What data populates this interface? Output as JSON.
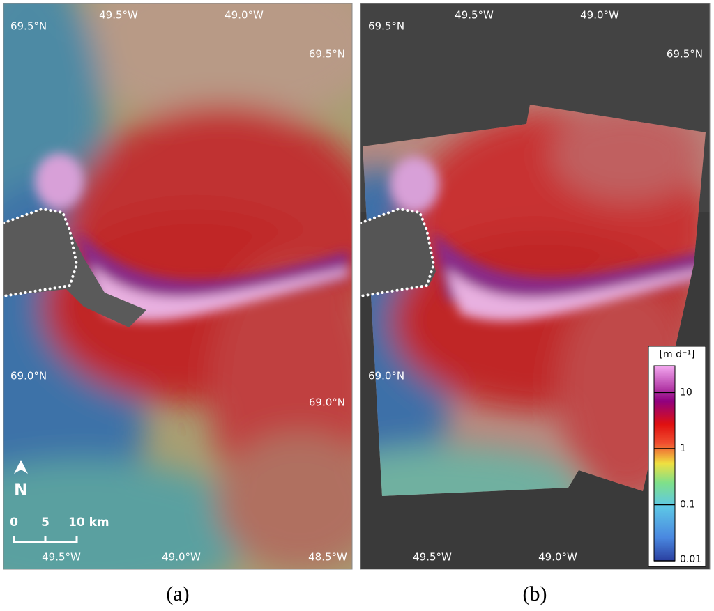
{
  "panels": [
    {
      "label": "(a)",
      "coord_labels": [
        "69.5°N",
        "49.5°W",
        "49.0°W",
        "69.5°N",
        "69.0°N",
        "69.0°N",
        "49.5°W",
        "49.0°W",
        "48.5°W"
      ],
      "north": "N",
      "scale_bar": [
        "0",
        "5",
        "10 km"
      ]
    },
    {
      "label": "(b)",
      "coord_labels": [
        "69.5°N",
        "49.5°W",
        "49.0°W",
        "69.5°N",
        "69.0°N",
        "49.5°W",
        "49.0°W"
      ],
      "colorbar": {
        "title": "[m d⁻¹]",
        "scale": "log",
        "lim": [
          0.01,
          30
        ],
        "ticks": [
          0.01,
          0.1,
          1,
          10
        ]
      }
    }
  ]
}
